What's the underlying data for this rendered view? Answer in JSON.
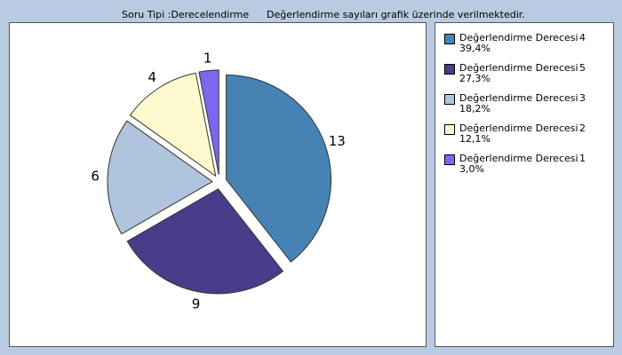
{
  "header": {
    "question_type": "Soru Tipi :Derecelendirme",
    "note": "Değerlendirme sayıları grafik üzerinde verilmektedir."
  },
  "chart_data": {
    "type": "pie",
    "series": [
      {
        "label": "Değerlendirme Derecesi",
        "level": "4",
        "value": 13,
        "percent": "39,4%",
        "color": "#4682b4"
      },
      {
        "label": "Değerlendirme Derecesi",
        "level": "5",
        "value": 9,
        "percent": "27,3%",
        "color": "#483d8b"
      },
      {
        "label": "Değerlendirme Derecesi",
        "level": "3",
        "value": 6,
        "percent": "18,2%",
        "color": "#b0c4de"
      },
      {
        "label": "Değerlendirme Derecesi",
        "level": "2",
        "value": 4,
        "percent": "12,1%",
        "color": "#fffacd"
      },
      {
        "label": "Değerlendirme Derecesi",
        "level": "1",
        "value": 1,
        "percent": "3,0%",
        "color": "#7b68ee"
      }
    ],
    "legend_position": "right"
  }
}
